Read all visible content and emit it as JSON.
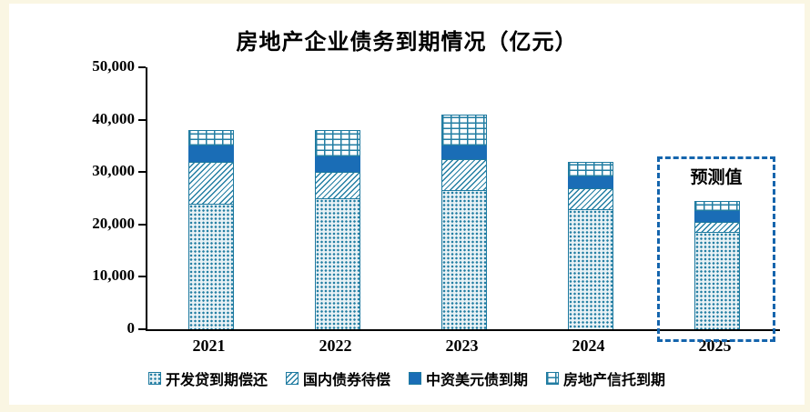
{
  "title": "房地产企业债务到期情况（亿元）",
  "chart_data": {
    "type": "bar",
    "stacked": true,
    "title": "房地产企业债务到期情况（亿元）",
    "categories": [
      "2021",
      "2022",
      "2023",
      "2024",
      "2025"
    ],
    "series": [
      {
        "name": "开发贷到期偿还",
        "pattern": "dots",
        "values": [
          24000,
          25000,
          26500,
          23000,
          18500
        ]
      },
      {
        "name": "国内债券待偿",
        "pattern": "hatch",
        "values": [
          8000,
          5000,
          6000,
          4000,
          2000
        ]
      },
      {
        "name": "中资美元债到期",
        "pattern": "solid",
        "values": [
          3000,
          3000,
          2500,
          2200,
          2000
        ]
      },
      {
        "name": "房地产信托到期",
        "pattern": "brick",
        "values": [
          3000,
          5000,
          6000,
          2800,
          2000
        ]
      }
    ],
    "totals": [
      38000,
      38000,
      41000,
      32000,
      24500
    ],
    "xlabel": "",
    "ylabel": "",
    "ylim": [
      0,
      50000
    ],
    "yticks": [
      0,
      10000,
      20000,
      30000,
      40000,
      50000
    ],
    "ytick_labels": [
      "0",
      "10,000",
      "20,000",
      "30,000",
      "40,000",
      "50,000"
    ],
    "grid": false,
    "legend_position": "bottom",
    "annotation": {
      "label": "预测值",
      "category": "2025"
    }
  },
  "colors": {
    "pattern_teal": "#237ea3",
    "solid_blue": "#1a6db6",
    "forecast_box_blue": "#1565ad",
    "axis": "#000000",
    "background": "#ffffff",
    "page_edge": "#faf6e3"
  }
}
